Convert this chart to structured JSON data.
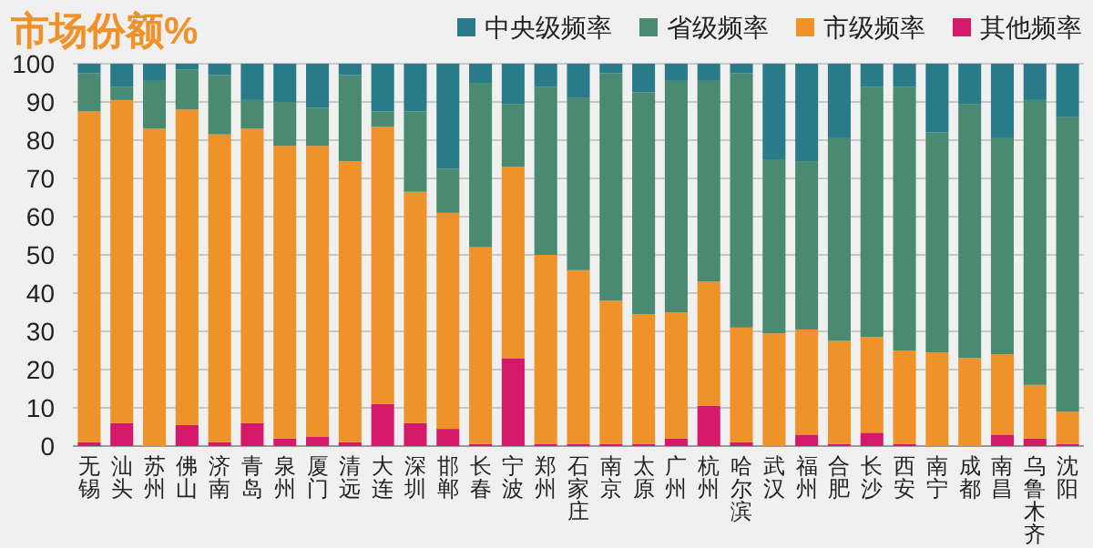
{
  "chart_data": {
    "type": "bar",
    "stacked": true,
    "title": "市场份额%",
    "categories": [
      "无锡",
      "汕头",
      "苏州",
      "佛山",
      "济南",
      "青岛",
      "泉州",
      "厦门",
      "清远",
      "大连",
      "深圳",
      "邯郸",
      "长春",
      "宁波",
      "郑州",
      "石家庄",
      "南京",
      "太原",
      "广州",
      "杭州",
      "哈尔滨",
      "武汉",
      "福州",
      "合肥",
      "长沙",
      "西安",
      "南宁",
      "成都",
      "南昌",
      "乌鲁木齐",
      "沈阳"
    ],
    "series": [
      {
        "name": "其他频率",
        "color": "#d4196b",
        "values": [
          1,
          6,
          0,
          5.5,
          1,
          6,
          2,
          2.5,
          1,
          11,
          6,
          4.5,
          0.5,
          23,
          0.5,
          0.5,
          0.5,
          0.5,
          2,
          10.5,
          1,
          0,
          3,
          0.5,
          3.5,
          0.5,
          0,
          0,
          3,
          2,
          0.5
        ]
      },
      {
        "name": "市级频率",
        "color": "#f0922a",
        "values": [
          86.5,
          84.5,
          83,
          82.5,
          80.5,
          77,
          76.5,
          76,
          73.5,
          72.5,
          60.5,
          56.5,
          51.5,
          50,
          49.5,
          45.5,
          37.5,
          34,
          33,
          32.5,
          30,
          29.5,
          27.5,
          27,
          25,
          24.5,
          24.5,
          23,
          21,
          14,
          8.5
        ]
      },
      {
        "name": "省级频率",
        "color": "#4a8a70",
        "values": [
          10,
          3.5,
          12.5,
          10.5,
          15.5,
          7.5,
          11.5,
          10,
          22.5,
          4,
          21,
          11.5,
          43,
          16.5,
          44,
          45,
          59.5,
          58,
          60.5,
          52.5,
          66.5,
          45.5,
          44,
          53,
          65.5,
          69,
          57.5,
          66.5,
          56.5,
          74.5,
          77
        ]
      },
      {
        "name": "中央级频率",
        "color": "#2a7b8a",
        "values": [
          2.5,
          6,
          4.5,
          1.5,
          3,
          9.5,
          10,
          11.5,
          3,
          12.5,
          12.5,
          27.5,
          5,
          10.5,
          6,
          9,
          2.5,
          7.5,
          4.5,
          4.5,
          2.5,
          25,
          25.5,
          19.5,
          6,
          6,
          18,
          10.5,
          19.5,
          9.5,
          14
        ]
      }
    ],
    "ylim": [
      0,
      100
    ],
    "yticks": [
      0,
      10,
      20,
      30,
      40,
      50,
      60,
      70,
      80,
      90,
      100
    ],
    "grid": "y",
    "legend": "top right"
  }
}
